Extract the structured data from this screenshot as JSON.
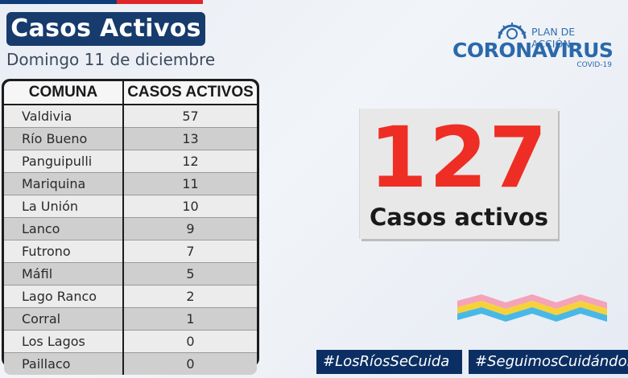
{
  "header": {
    "title": "Casos Activos",
    "date": "Domingo 11 de diciembre"
  },
  "logo": {
    "plan": "PLAN DE ACCIÓN",
    "main": "CORONAVIRUS",
    "sub": "COVID-19",
    "icon": "virus-icon"
  },
  "table": {
    "headers": [
      "COMUNA",
      "CASOS ACTIVOS"
    ],
    "rows": [
      {
        "comuna": "Valdivia",
        "casos": "57"
      },
      {
        "comuna": "Río Bueno",
        "casos": "13"
      },
      {
        "comuna": "Panguipulli",
        "casos": "12"
      },
      {
        "comuna": "Mariquina",
        "casos": "11"
      },
      {
        "comuna": "La Unión",
        "casos": "10"
      },
      {
        "comuna": "Lanco",
        "casos": "9"
      },
      {
        "comuna": "Futrono",
        "casos": "7"
      },
      {
        "comuna": "Máfil",
        "casos": "5"
      },
      {
        "comuna": "Lago Ranco",
        "casos": "2"
      },
      {
        "comuna": "Corral",
        "casos": "1"
      },
      {
        "comuna": "Los Lagos",
        "casos": "0"
      },
      {
        "comuna": "Paillaco",
        "casos": "0"
      }
    ]
  },
  "summary": {
    "total": "127",
    "label": "Casos activos"
  },
  "hashtags": [
    "#LosRíosSeCuida",
    "#SeguimosCuidándonos"
  ],
  "colors": {
    "title_bg": "#163b6c",
    "big_number": "#ee2e24",
    "logo_blue": "#2a69aa",
    "hashtag_bg": "#0c2f63",
    "flag_blue": "#0f3d7a",
    "flag_red": "#e0262b"
  }
}
